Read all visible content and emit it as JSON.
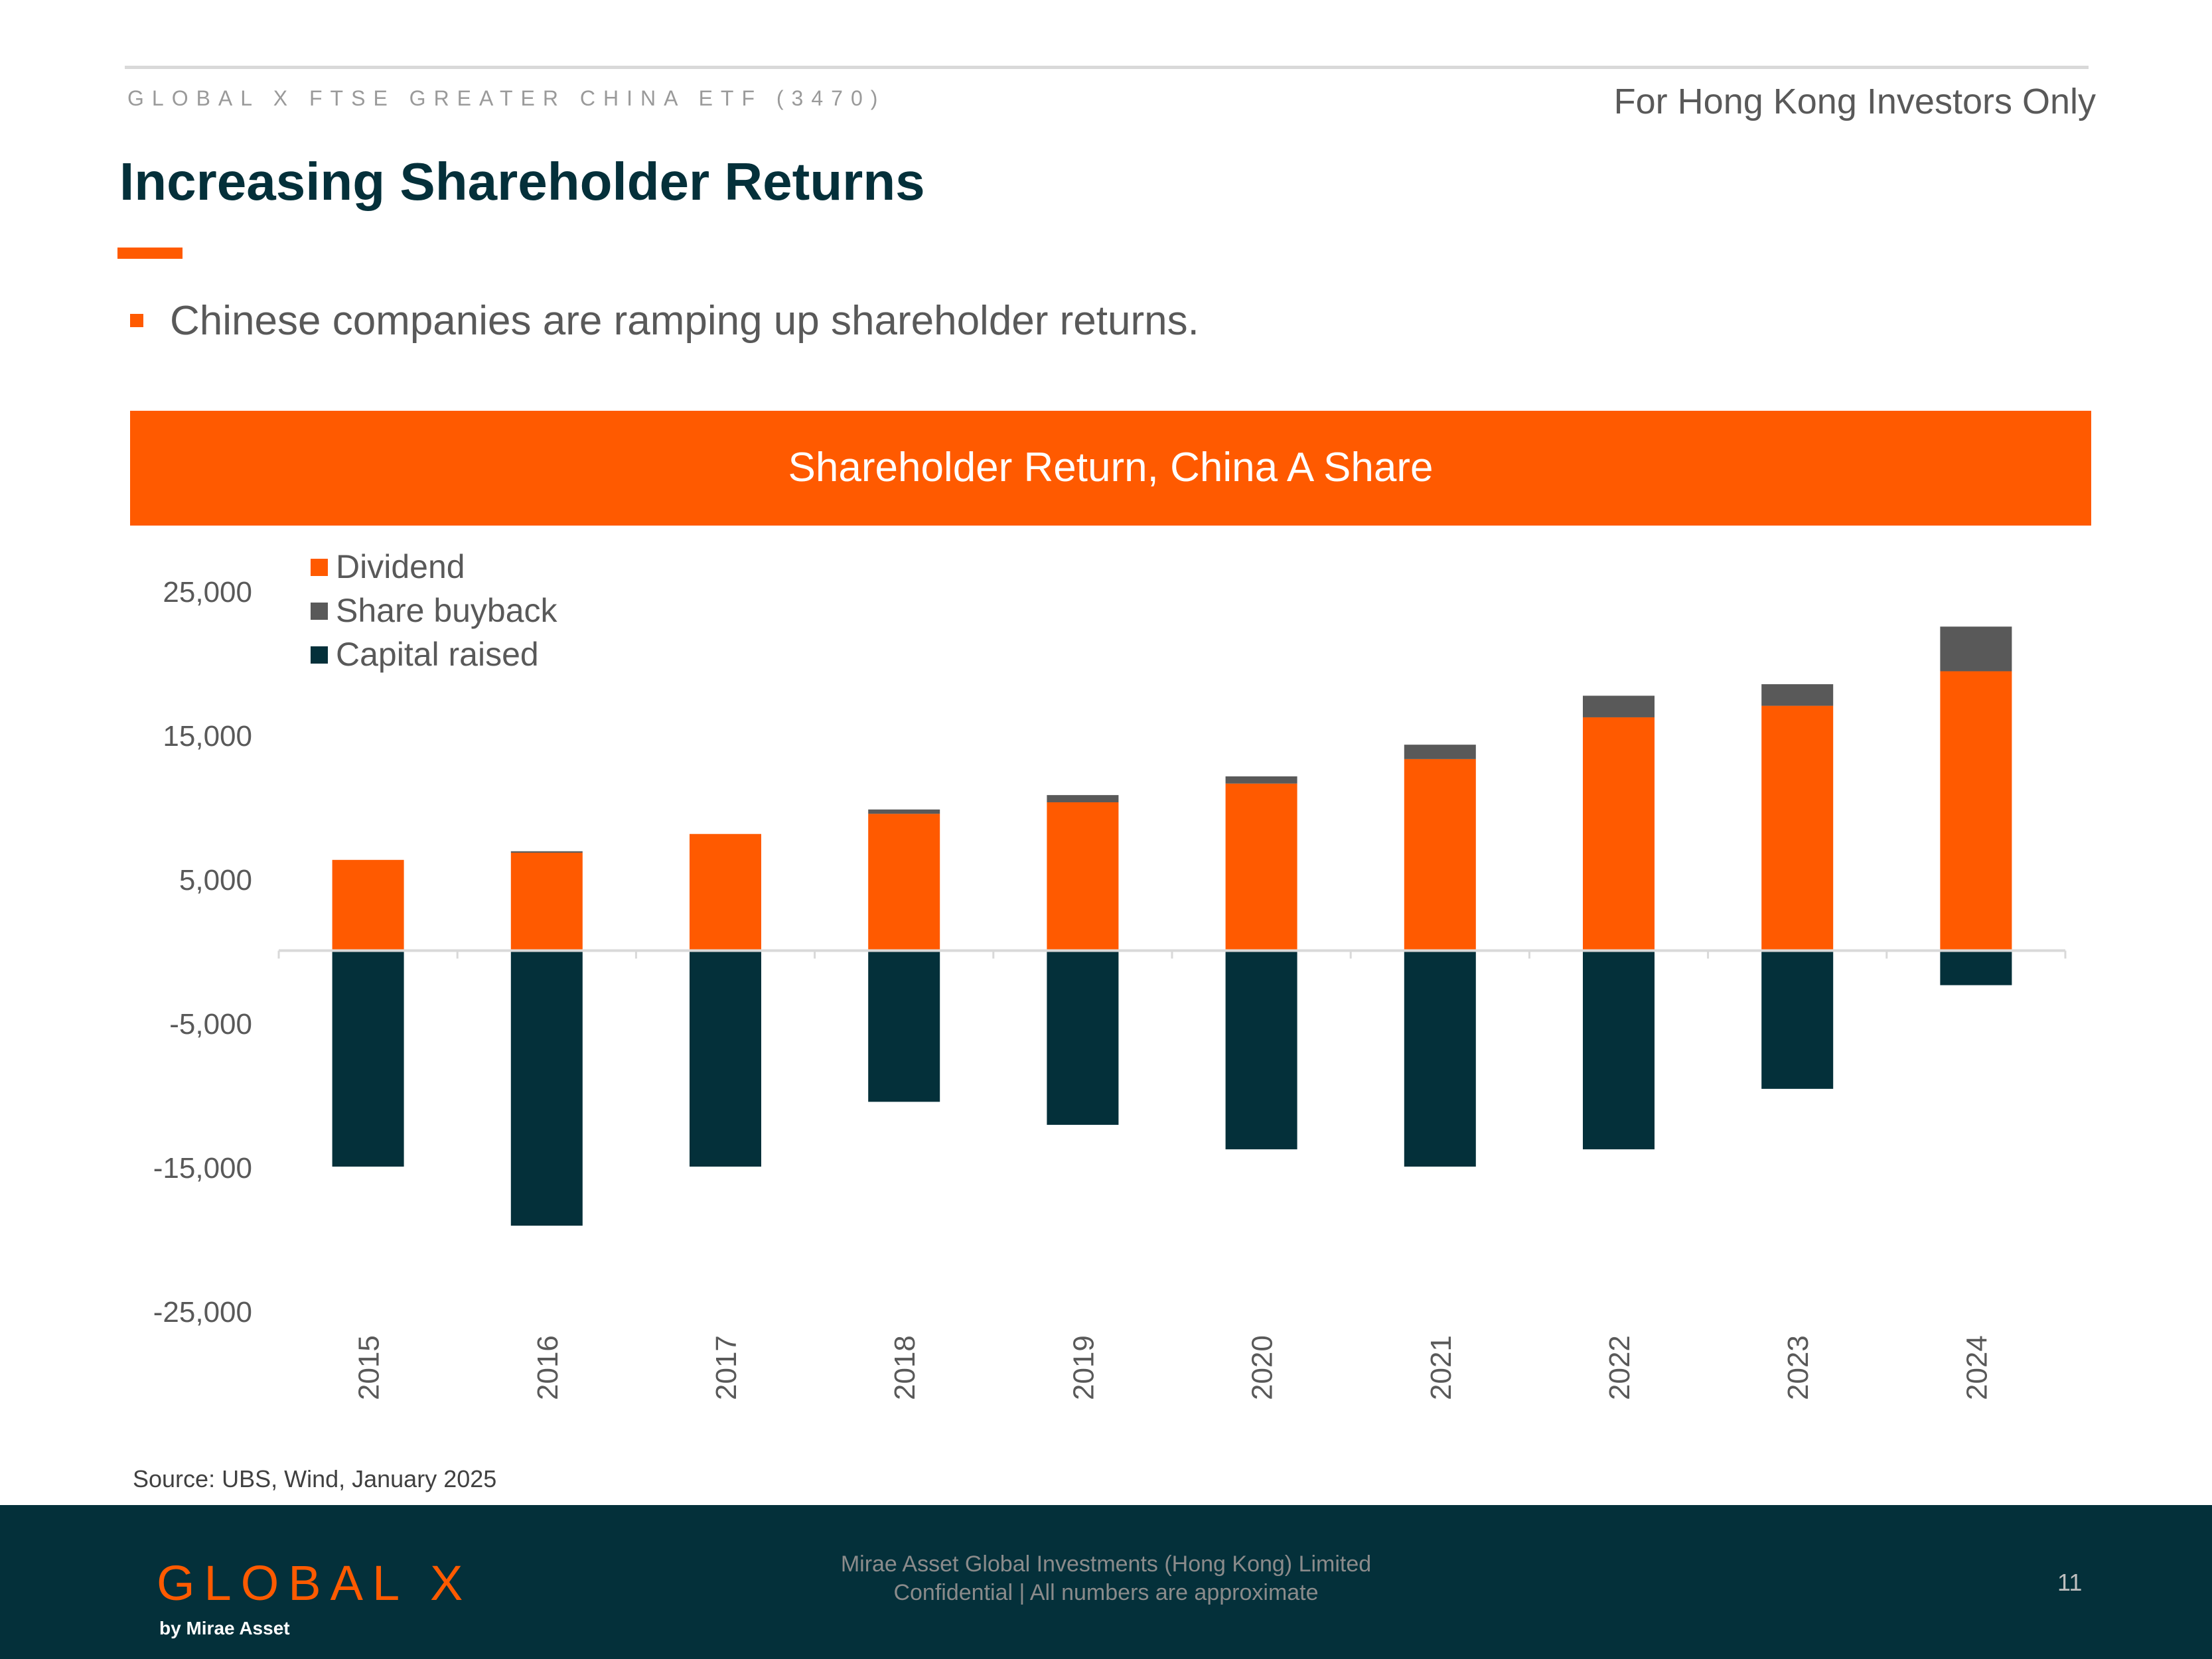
{
  "header": {
    "fund_name": "GLOBAL X FTSE GREATER CHINA ETF (3470)",
    "investors_note": "For Hong Kong Investors Only",
    "title": "Increasing Shareholder Returns"
  },
  "bullet": "Chinese companies are ramping up shareholder returns.",
  "chart_data": {
    "type": "bar",
    "stacked": true,
    "title": "Shareholder Return, China A Share",
    "xlabel": "",
    "ylabel": "",
    "categories": [
      "2015",
      "2016",
      "2017",
      "2018",
      "2019",
      "2020",
      "2021",
      "2022",
      "2023",
      "2024"
    ],
    "series": [
      {
        "name": "Dividend",
        "color": "#ff5a00",
        "values": [
          6300,
          6800,
          8100,
          9500,
          10300,
          11600,
          13300,
          16200,
          17000,
          19400
        ]
      },
      {
        "name": "Share buyback",
        "color": "#595959",
        "values": [
          0,
          100,
          0,
          300,
          500,
          500,
          1000,
          1500,
          1500,
          3100
        ]
      },
      {
        "name": "Capital raised",
        "color": "#04303a",
        "values": [
          -15000,
          -19100,
          -15000,
          -10500,
          -12100,
          -13800,
          -15000,
          -13800,
          -9600,
          -2400
        ]
      }
    ],
    "ylim": [
      -25000,
      25000
    ],
    "yticks": [
      25000,
      15000,
      5000,
      -5000,
      -15000,
      -25000
    ],
    "ytick_labels": [
      "25,000",
      "15,000",
      "5,000",
      "-5,000",
      "-15,000",
      "-25,000"
    ],
    "grid": false,
    "legend_position": "top-left"
  },
  "source": "Source: UBS, Wind, January 2025",
  "footer": {
    "logo": "GLOBAL X",
    "logo_sub": "by Mirae Asset",
    "company": "Mirae Asset Global Investments (Hong Kong) Limited",
    "disclaimer": "Confidential | All numbers are approximate",
    "page_number": "11"
  }
}
